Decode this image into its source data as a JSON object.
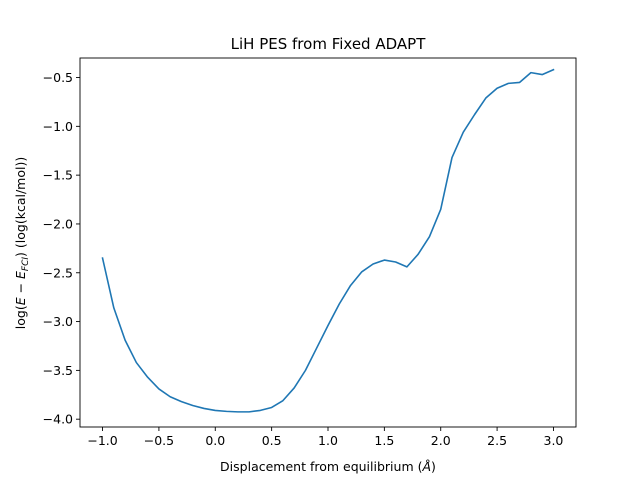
{
  "chart_data": {
    "type": "line",
    "title": "LiH PES from Fixed ADAPT",
    "xlabel_parts": {
      "prefix": "Displacement from equilibrium (",
      "unit": "Å",
      "suffix": ")"
    },
    "ylabel_parts": {
      "prefix": "log(",
      "e1": "E",
      "minus": " − ",
      "e2": "E",
      "sub": "FCI",
      "suffix": ") (log(kcal/mol))"
    },
    "xlim": [
      -1.2,
      3.2
    ],
    "ylim": [
      -4.08,
      -0.3
    ],
    "xticks": [
      -1.0,
      -0.5,
      0.0,
      0.5,
      1.0,
      1.5,
      2.0,
      2.5,
      3.0
    ],
    "xtick_labels": [
      "−1.0",
      "−0.5",
      "0.0",
      "0.5",
      "1.0",
      "1.5",
      "2.0",
      "2.5",
      "3.0"
    ],
    "yticks": [
      -4.0,
      -3.5,
      -3.0,
      -2.5,
      -2.0,
      -1.5,
      -1.0,
      -0.5
    ],
    "ytick_labels": [
      "−4.0",
      "−3.5",
      "−3.0",
      "−2.5",
      "−2.0",
      "−1.5",
      "−1.0",
      "−0.5"
    ],
    "grid": false,
    "color": "#1f77b4",
    "series": [
      {
        "x": [
          -1.0,
          -0.9,
          -0.8,
          -0.7,
          -0.6,
          -0.5,
          -0.4,
          -0.3,
          -0.2,
          -0.1,
          0.0,
          0.1,
          0.2,
          0.3,
          0.4,
          0.5,
          0.6,
          0.7,
          0.8,
          0.9,
          1.0,
          1.1,
          1.2,
          1.3,
          1.4,
          1.5,
          1.6,
          1.7,
          1.8,
          1.9,
          2.0,
          2.1,
          2.2,
          2.3,
          2.4,
          2.5,
          2.6,
          2.7,
          2.8,
          2.9,
          3.0
        ],
        "y": [
          -2.35,
          -2.86,
          -3.19,
          -3.42,
          -3.57,
          -3.69,
          -3.77,
          -3.82,
          -3.86,
          -3.89,
          -3.91,
          -3.92,
          -3.925,
          -3.925,
          -3.91,
          -3.88,
          -3.81,
          -3.68,
          -3.5,
          -3.27,
          -3.04,
          -2.82,
          -2.63,
          -2.49,
          -2.41,
          -2.37,
          -2.39,
          -2.44,
          -2.31,
          -2.13,
          -1.85,
          -1.32,
          -1.06,
          -0.88,
          -0.71,
          -0.61,
          -0.56,
          -0.55,
          -0.45,
          -0.47,
          -0.42
        ]
      }
    ]
  }
}
